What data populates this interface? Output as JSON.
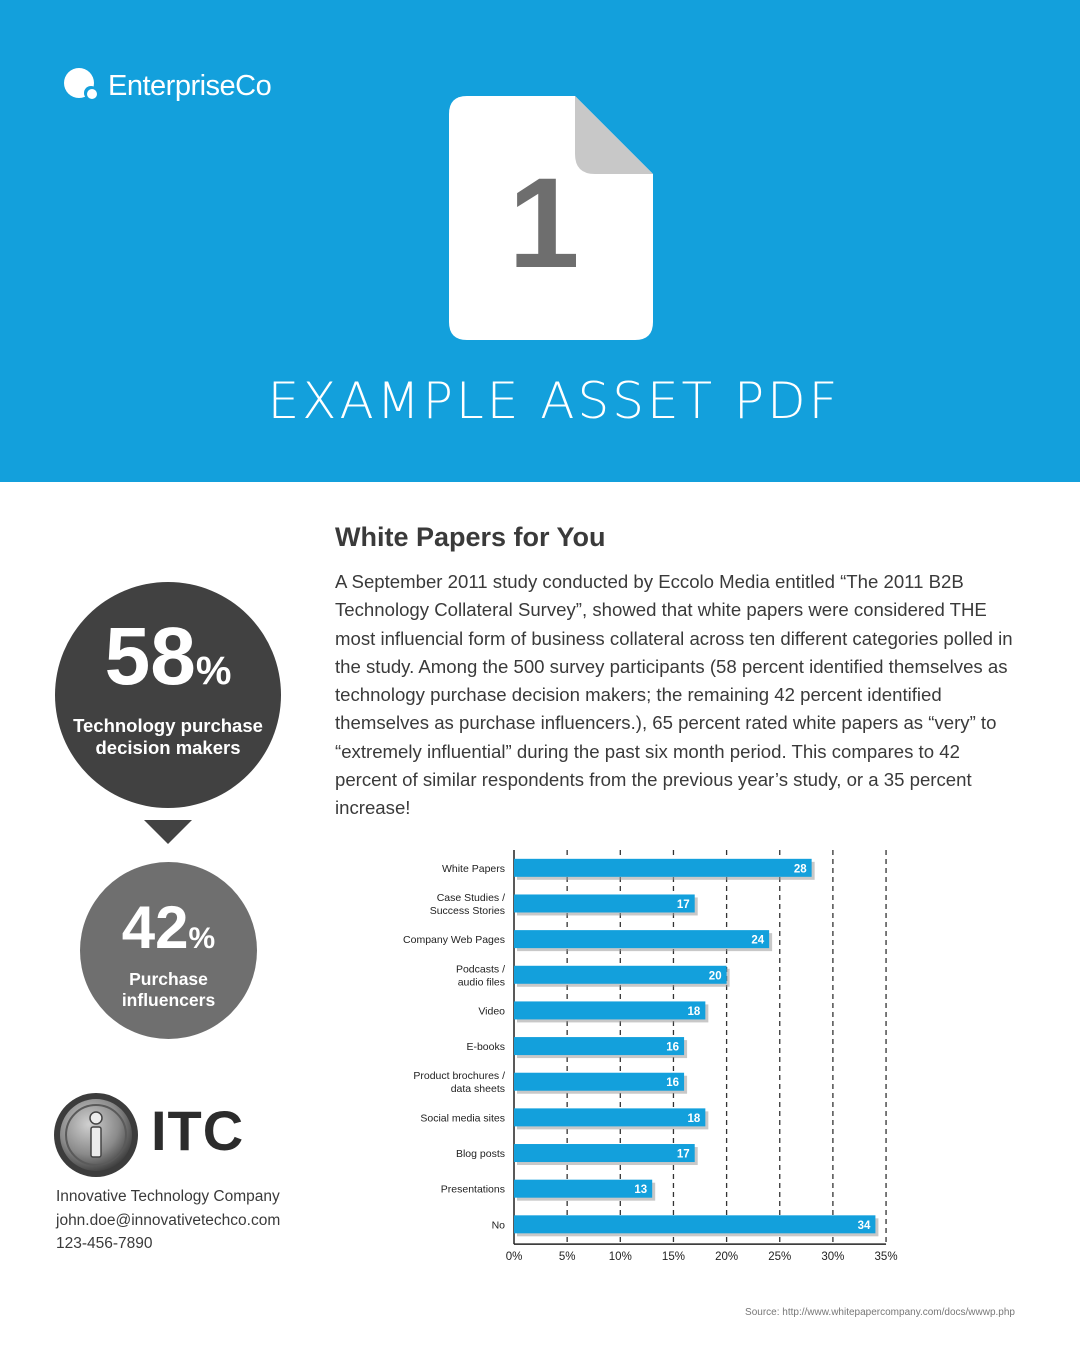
{
  "header": {
    "logo_text": "EnterpriseCo",
    "document_number": "1",
    "title": "EXAMPLE ASSET PDF",
    "colors": {
      "banner": "#13a0dc",
      "icon_page": "#ffffff",
      "icon_fold": "#c8c8c8",
      "icon_number": "#6e6e6e"
    },
    "icons": [
      "enterpriseco-logo-icon",
      "document-icon"
    ]
  },
  "article": {
    "heading": "White Papers for You",
    "body": "A September 2011 study conducted by Eccolo Media entitled “The 2011 B2B Technology Collateral Survey”, showed that white papers were considered THE most influencial form of business collateral across ten different categories polled in the study. Among the 500 survey participants (58 percent identified themselves as technology purchase decision makers; the remaining 42 percent identified themselves as purchase influencers.), 65 percent rated white papers as “very” to “extremely influential” during the past six month period. This compares to 42 percent of similar respondents from the previous year’s study, or a 35 percent increase!"
  },
  "stats": [
    {
      "value": "58",
      "unit": "%",
      "line1": "Technology purchase",
      "line2": "decision makers",
      "color": "#414141"
    },
    {
      "value": "42",
      "unit": "%",
      "line1": "Purchase",
      "line2": "influencers",
      "color": "#6f6f6f"
    }
  ],
  "company": {
    "short_name": "ITC",
    "full_name": "Innovative Technology Company",
    "email": "john.doe@innovativetechco.com",
    "phone": "123-456-7890",
    "icons": [
      "itc-emblem-icon"
    ]
  },
  "chart_data": {
    "type": "bar",
    "orientation": "horizontal",
    "categories": [
      [
        "White Papers"
      ],
      [
        "Case Studies /",
        "Success Stories"
      ],
      [
        "Company Web Pages"
      ],
      [
        "Podcasts /",
        "audio files"
      ],
      [
        "Video"
      ],
      [
        "E-books"
      ],
      [
        "Product brochures /",
        "data sheets"
      ],
      [
        "Social media sites"
      ],
      [
        "Blog posts"
      ],
      [
        "Presentations"
      ],
      [
        "No"
      ]
    ],
    "values": [
      28,
      17,
      24,
      20,
      18,
      16,
      16,
      18,
      17,
      13,
      34
    ],
    "data_labels": [
      "28",
      "17",
      "24",
      "20",
      "18",
      "16",
      "16",
      "18",
      "17",
      "13",
      "34"
    ],
    "xlim": [
      0,
      35
    ],
    "x_ticks": [
      "0%",
      "5%",
      "10%",
      "15%",
      "20%",
      "25%",
      "30%",
      "35%"
    ],
    "grid": "vertical dashed",
    "bar_color": "#13a0dc"
  },
  "source": "Source: http://www.whitepapercompany.com/docs/wwwp.php"
}
